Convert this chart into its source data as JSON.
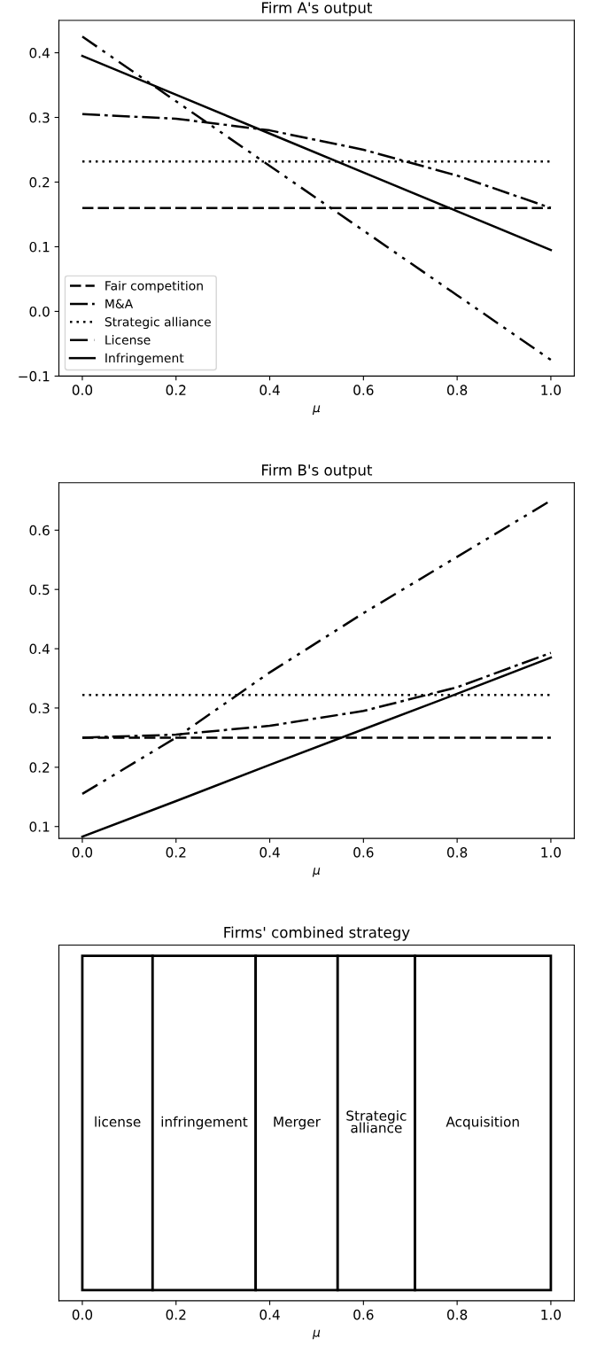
{
  "chart_data": [
    {
      "type": "line",
      "title": "Firm A's output",
      "xlabel": "μ",
      "xlim": [
        -0.05,
        1.05
      ],
      "xticks": [
        {
          "value": 0,
          "label": "0.0"
        },
        {
          "value": 0.2,
          "label": "0.2"
        },
        {
          "value": 0.4,
          "label": "0.4"
        },
        {
          "value": 0.6,
          "label": "0.6"
        },
        {
          "value": 0.8,
          "label": "0.8"
        },
        {
          "value": 1,
          "label": "1.0"
        }
      ],
      "ylim": [
        -0.1,
        0.45
      ],
      "yticks": [
        {
          "value": -0.1,
          "label": "−0.1"
        },
        {
          "value": 0,
          "label": "0.0"
        },
        {
          "value": 0.1,
          "label": "0.1"
        },
        {
          "value": 0.2,
          "label": "0.2"
        },
        {
          "value": 0.3,
          "label": "0.3"
        },
        {
          "value": 0.4,
          "label": "0.4"
        }
      ],
      "x": [
        0,
        0.2,
        0.4,
        0.6,
        0.8,
        1.0
      ],
      "legend": "lower left",
      "grid": false,
      "series": [
        {
          "name": "Fair competition",
          "color": "#000000",
          "line_style": "dashed",
          "values": [
            0.16,
            0.16,
            0.16,
            0.16,
            0.16,
            0.16
          ]
        },
        {
          "name": "M&A",
          "color": "#000000",
          "line_style": "dashdot",
          "values": [
            0.305,
            0.298,
            0.28,
            0.25,
            0.21,
            0.16
          ]
        },
        {
          "name": "Strategic alliance",
          "color": "#000000",
          "line_style": "dotted",
          "values": [
            0.232,
            0.232,
            0.232,
            0.232,
            0.232,
            0.232
          ]
        },
        {
          "name": "License",
          "color": "#000000",
          "line_style": "dashdotdot",
          "values": [
            0.425,
            0.325,
            0.225,
            0.125,
            0.025,
            -0.075
          ]
        },
        {
          "name": "Infringement",
          "color": "#000000",
          "line_style": "solid",
          "values": [
            0.395,
            0.335,
            0.275,
            0.215,
            0.155,
            0.095
          ]
        }
      ]
    },
    {
      "type": "line",
      "title": "Firm B's output",
      "xlabel": "μ",
      "xlim": [
        -0.05,
        1.05
      ],
      "xticks": [
        {
          "value": 0,
          "label": "0.0"
        },
        {
          "value": 0.2,
          "label": "0.2"
        },
        {
          "value": 0.4,
          "label": "0.4"
        },
        {
          "value": 0.6,
          "label": "0.6"
        },
        {
          "value": 0.8,
          "label": "0.8"
        },
        {
          "value": 1,
          "label": "1.0"
        }
      ],
      "ylim": [
        0.08,
        0.68
      ],
      "yticks": [
        0.1,
        0.2,
        0.3,
        0.4,
        0.5,
        0.6
      ],
      "x": [
        0,
        0.2,
        0.4,
        0.6,
        0.8,
        1.0
      ],
      "grid": false,
      "series": [
        {
          "color": "#000000",
          "line_style": "dashed",
          "values": [
            0.25,
            0.25,
            0.25,
            0.25,
            0.25,
            0.25
          ]
        },
        {
          "color": "#000000",
          "line_style": "dashdot",
          "values": [
            0.25,
            0.255,
            0.27,
            0.295,
            0.335,
            0.393
          ]
        },
        {
          "color": "#000000",
          "line_style": "dotted",
          "values": [
            0.322,
            0.322,
            0.322,
            0.322,
            0.322,
            0.322
          ]
        },
        {
          "color": "#000000",
          "line_style": "dashdotdot",
          "values": [
            0.155,
            0.25,
            0.36,
            0.46,
            0.555,
            0.65
          ]
        },
        {
          "color": "#000000",
          "line_style": "solid",
          "values": [
            0.083,
            0.143,
            0.204,
            0.264,
            0.324,
            0.385
          ]
        }
      ]
    },
    {
      "type": "bar",
      "orientation": "horizontal",
      "stacked": true,
      "categories": [
        null
      ],
      "series": [
        {
          "name": "license",
          "color": "#ffffff",
          "values": [
            0.15
          ]
        },
        {
          "name": "infringement",
          "color": "#ffffff",
          "values": [
            0.22
          ]
        },
        {
          "name": "Merger",
          "color": "#ffffff",
          "values": [
            0.175
          ]
        },
        {
          "name": "Strategic\nalliance",
          "color": "#ffffff",
          "values": [
            0.165
          ]
        },
        {
          "name": "Acquisition",
          "color": "#ffffff",
          "values": [
            0.29
          ]
        }
      ],
      "title": "Firms' combined strategy",
      "xlabel": "μ",
      "xlim": [
        -0.05,
        1.05
      ],
      "xticks": [
        {
          "value": 0,
          "label": "0.0"
        },
        {
          "value": 0.2,
          "label": "0.2"
        },
        {
          "value": 0.4,
          "label": "0.4"
        },
        {
          "value": 0.6,
          "label": "0.6"
        },
        {
          "value": 0.8,
          "label": "0.8"
        },
        {
          "value": 1,
          "label": "1.0"
        }
      ],
      "tick_labels": "x"
    }
  ]
}
